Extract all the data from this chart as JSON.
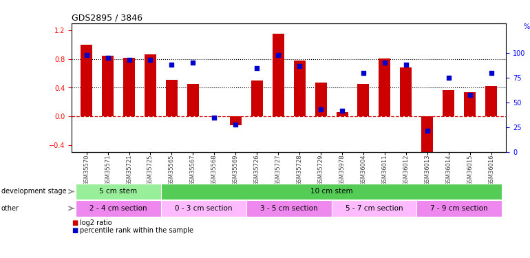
{
  "title": "GDS2895 / 3846",
  "samples": [
    "GSM35570",
    "GSM35571",
    "GSM35721",
    "GSM35725",
    "GSM35565",
    "GSM35567",
    "GSM35568",
    "GSM35569",
    "GSM35726",
    "GSM35727",
    "GSM35728",
    "GSM35729",
    "GSM35978",
    "GSM36004",
    "GSM36011",
    "GSM36012",
    "GSM36013",
    "GSM36014",
    "GSM36015",
    "GSM36016"
  ],
  "log2_ratio": [
    1.0,
    0.85,
    0.82,
    0.87,
    0.51,
    0.45,
    0.0,
    -0.12,
    0.5,
    1.15,
    0.78,
    0.47,
    0.06,
    0.45,
    0.81,
    0.68,
    -0.55,
    0.37,
    0.34,
    0.42
  ],
  "percentile": [
    98,
    95,
    93,
    93,
    88,
    90,
    35,
    28,
    85,
    98,
    87,
    43,
    42,
    80,
    90,
    88,
    22,
    75,
    58,
    80
  ],
  "bar_color": "#cc0000",
  "dot_color": "#0000cc",
  "ylim_left": [
    -0.5,
    1.3
  ],
  "ylim_right": [
    0,
    130
  ],
  "y_ticks_left": [
    -0.4,
    0.0,
    0.4,
    0.8,
    1.2
  ],
  "y_ticks_right": [
    0,
    25,
    50,
    75,
    100
  ],
  "hlines": [
    0.4,
    0.8
  ],
  "zero_line_color": "#cc0000",
  "zero_line_style": "--",
  "hline_style": ":",
  "hline_color": "black",
  "dev_stage_groups": [
    {
      "label": "5 cm stem",
      "start": 0,
      "end": 4,
      "color": "#99ee99"
    },
    {
      "label": "10 cm stem",
      "start": 4,
      "end": 20,
      "color": "#55cc55"
    }
  ],
  "other_groups": [
    {
      "label": "2 - 4 cm section",
      "start": 0,
      "end": 4,
      "color": "#ee88ee"
    },
    {
      "label": "0 - 3 cm section",
      "start": 4,
      "end": 8,
      "color": "#ffbbff"
    },
    {
      "label": "3 - 5 cm section",
      "start": 8,
      "end": 12,
      "color": "#ee88ee"
    },
    {
      "label": "5 - 7 cm section",
      "start": 12,
      "end": 16,
      "color": "#ffbbff"
    },
    {
      "label": "7 - 9 cm section",
      "start": 16,
      "end": 20,
      "color": "#ee88ee"
    }
  ],
  "dev_stage_label": "development stage",
  "other_label": "other",
  "legend_log2": "log2 ratio",
  "legend_pct": "percentile rank within the sample",
  "right_axis_label": "%",
  "bg_color": "#ffffff",
  "tick_label_color": "#444444",
  "bar_width": 0.55
}
